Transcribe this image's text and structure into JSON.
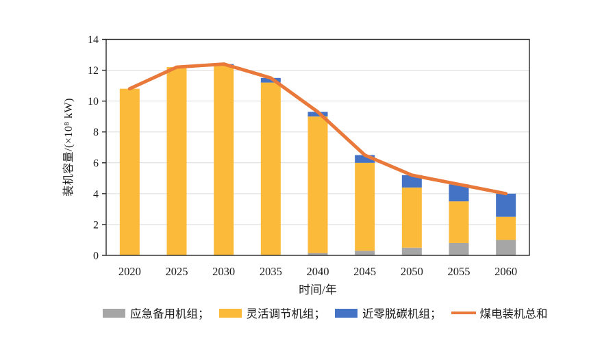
{
  "figure": {
    "background": "#ffffff",
    "text_color": "#1a1a1a",
    "gridline_color": "#d9d9d9",
    "axis_color": "#262626"
  },
  "axes": {
    "x_title": "时间/年",
    "y_title": "装机容量/(×10⁸ kW)",
    "y_tick_labels": [
      "0",
      "2",
      "4",
      "6",
      "8",
      "10",
      "12",
      "14"
    ],
    "x_tick_labels": [
      "2020",
      "2025",
      "2030",
      "2035",
      "2040",
      "2045",
      "2050",
      "2055",
      "2060"
    ]
  },
  "legend": {
    "items": [
      {
        "label": "应急备用机组；",
        "marker": "swatch",
        "color": "#A6A6A6"
      },
      {
        "label": "灵活调节机组；",
        "marker": "swatch",
        "color": "#FCBA3B"
      },
      {
        "label": "近零脱碳机组；",
        "marker": "swatch",
        "color": "#4472C4"
      },
      {
        "label": "煤电装机总和",
        "marker": "line",
        "color": "#E8793A"
      }
    ]
  },
  "chart_data": {
    "type": "bar",
    "subtype": "stacked-bars-with-line-overlay",
    "title": "",
    "xlabel": "时间/年",
    "ylabel": "装机容量/(×10⁸ kW)",
    "categories": [
      "2020",
      "2025",
      "2030",
      "2035",
      "2040",
      "2045",
      "2050",
      "2055",
      "2060"
    ],
    "series": [
      {
        "name": "应急备用机组",
        "color": "#A6A6A6",
        "values": [
          0,
          0,
          0,
          0,
          0.15,
          0.3,
          0.5,
          0.8,
          1.0
        ]
      },
      {
        "name": "灵活调节机组",
        "color": "#FCBA3B",
        "values": [
          10.8,
          12.2,
          12.3,
          11.2,
          8.85,
          5.7,
          3.9,
          2.7,
          1.5
        ]
      },
      {
        "name": "近零脱碳机组",
        "color": "#4472C4",
        "values": [
          0,
          0,
          0.1,
          0.3,
          0.3,
          0.5,
          0.8,
          1.1,
          1.5
        ]
      }
    ],
    "line_series": {
      "name": "煤电装机总和",
      "color": "#E8793A",
      "values": [
        10.8,
        12.2,
        12.4,
        11.5,
        9.3,
        6.5,
        5.2,
        4.6,
        4.0
      ]
    },
    "ylim": [
      0,
      14
    ],
    "ytick_step": 2,
    "grid": true,
    "legend_position": "bottom"
  }
}
